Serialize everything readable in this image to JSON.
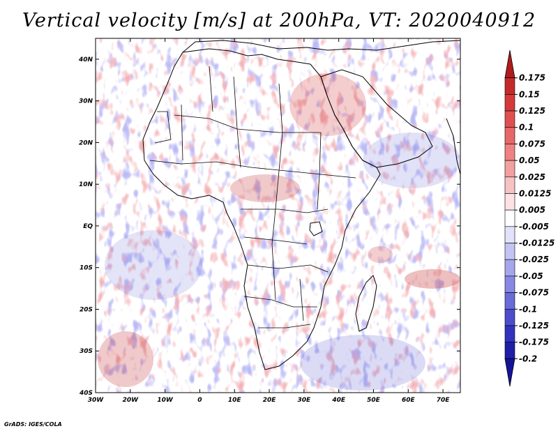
{
  "title": "Vertical velocity [m/s] at 200hPa, VT: 2020040912",
  "credit": "GrADS: IGES/COLA",
  "map": {
    "lat_labels": [
      "40N",
      "30N",
      "20N",
      "10N",
      "EQ",
      "10S",
      "20S",
      "30S",
      "40S"
    ],
    "lon_labels": [
      "30W",
      "20W",
      "10W",
      "0",
      "10E",
      "20E",
      "30E",
      "40E",
      "50E",
      "60E",
      "70E"
    ],
    "lat_values": [
      40,
      30,
      20,
      10,
      0,
      -10,
      -20,
      -30,
      -40
    ],
    "lon_values": [
      -30,
      -20,
      -10,
      0,
      10,
      20,
      30,
      40,
      50,
      60,
      70
    ],
    "extent": {
      "lon_min": -30,
      "lon_max": 75,
      "lat_min": -40,
      "lat_max": 45
    }
  },
  "colorbar": {
    "levels": [
      "0.175",
      "0.15",
      "0.125",
      "0.1",
      "0.075",
      "0.05",
      "0.025",
      "0.0125",
      "0.005",
      "-0.005",
      "-0.0125",
      "-0.025",
      "-0.05",
      "-0.075",
      "-0.1",
      "-0.125",
      "-0.175",
      "-0.2"
    ],
    "colors": [
      "#b01c1c",
      "#c42a2a",
      "#d43a3a",
      "#e05050",
      "#e86868",
      "#ee8282",
      "#f3a0a0",
      "#f8c2c2",
      "#fce2e2",
      "#ffffff",
      "#e2e2fb",
      "#c4c4f3",
      "#a6a6ec",
      "#8888e3",
      "#6a6ad9",
      "#4c4ccd",
      "#3232be",
      "#1e1ea8",
      "#14149a"
    ]
  }
}
